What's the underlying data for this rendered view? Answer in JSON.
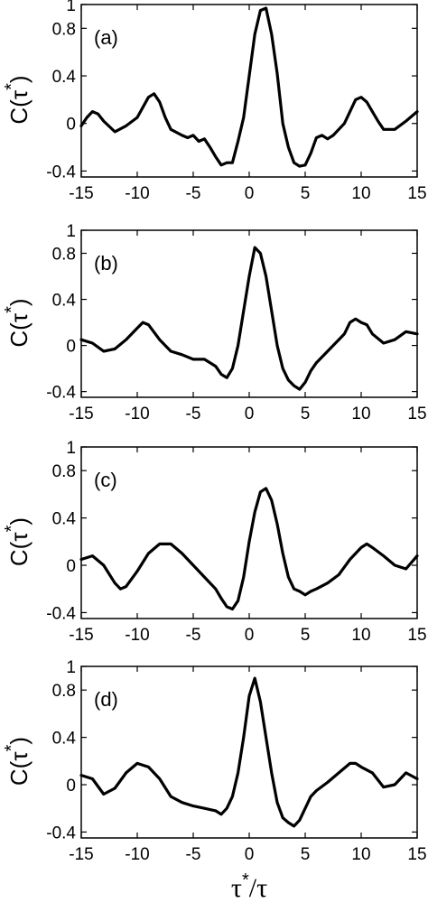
{
  "chart_data": [
    {
      "type": "line",
      "panel_label": "(a)",
      "ylabel_base": "C(τ",
      "ylabel_sup": "*",
      "ylabel_close": ")",
      "xlim": [
        -15,
        15
      ],
      "ylim": [
        -0.45,
        1.0
      ],
      "xticks": [
        "-15",
        "-10",
        "-5",
        "0",
        "5",
        "10",
        "15"
      ],
      "yticks": [
        "-0.4",
        "0",
        "0.4",
        "0.8",
        "1"
      ],
      "series": [
        {
          "x": [
            -15,
            -14.5,
            -14,
            -13.5,
            -13,
            -12,
            -11,
            -10,
            -9,
            -8.5,
            -8,
            -7.5,
            -7,
            -6,
            -5.5,
            -5,
            -4.5,
            -4,
            -3.5,
            -3,
            -2.5,
            -2,
            -1.5,
            -1,
            -0.5,
            0,
            0.5,
            1,
            1.5,
            2,
            2.5,
            3,
            3.5,
            4,
            4.5,
            5,
            5.5,
            6,
            6.5,
            7,
            7.5,
            8,
            8.5,
            9,
            9.5,
            10,
            10.5,
            11,
            11.5,
            12,
            13,
            14,
            15
          ],
          "values": [
            -0.02,
            0.05,
            0.1,
            0.08,
            0.02,
            -0.07,
            -0.02,
            0.05,
            0.22,
            0.25,
            0.18,
            0.05,
            -0.05,
            -0.1,
            -0.12,
            -0.1,
            -0.15,
            -0.13,
            -0.2,
            -0.28,
            -0.35,
            -0.33,
            -0.33,
            -0.15,
            0.05,
            0.4,
            0.75,
            0.95,
            0.97,
            0.75,
            0.42,
            0.0,
            -0.2,
            -0.33,
            -0.36,
            -0.35,
            -0.25,
            -0.12,
            -0.1,
            -0.13,
            -0.1,
            -0.05,
            0.0,
            0.1,
            0.2,
            0.22,
            0.18,
            0.1,
            0.02,
            -0.05,
            -0.05,
            0.02,
            0.1
          ]
        }
      ]
    },
    {
      "type": "line",
      "panel_label": "(b)",
      "ylabel_base": "C(τ",
      "ylabel_sup": "*",
      "ylabel_close": ")",
      "xlim": [
        -15,
        15
      ],
      "ylim": [
        -0.45,
        1.0
      ],
      "xticks": [
        "-15",
        "-10",
        "-5",
        "0",
        "5",
        "10",
        "15"
      ],
      "yticks": [
        "-0.4",
        "0",
        "0.4",
        "0.8",
        "1"
      ],
      "series": [
        {
          "x": [
            -15,
            -14,
            -13,
            -12,
            -11,
            -10,
            -9.5,
            -9,
            -8,
            -7,
            -6,
            -5,
            -4,
            -3,
            -2.5,
            -2,
            -1.5,
            -1,
            -0.5,
            0,
            0.5,
            1,
            1.5,
            2,
            2.5,
            3,
            3.5,
            4,
            4.5,
            5,
            5.5,
            6,
            7,
            8,
            8.5,
            9,
            9.5,
            10,
            10.5,
            11,
            12,
            13,
            14,
            15
          ],
          "values": [
            0.05,
            0.02,
            -0.05,
            -0.03,
            0.05,
            0.15,
            0.2,
            0.18,
            0.05,
            -0.05,
            -0.08,
            -0.12,
            -0.12,
            -0.18,
            -0.25,
            -0.28,
            -0.2,
            0.0,
            0.3,
            0.6,
            0.85,
            0.8,
            0.6,
            0.3,
            0.0,
            -0.2,
            -0.3,
            -0.35,
            -0.38,
            -0.32,
            -0.22,
            -0.15,
            -0.05,
            0.05,
            0.1,
            0.2,
            0.23,
            0.2,
            0.18,
            0.1,
            0.02,
            0.05,
            0.12,
            0.1
          ]
        }
      ]
    },
    {
      "type": "line",
      "panel_label": "(c)",
      "ylabel_base": "C(τ",
      "ylabel_sup": "*",
      "ylabel_close": ")",
      "xlim": [
        -15,
        15
      ],
      "ylim": [
        -0.45,
        1.0
      ],
      "xticks": [
        "-15",
        "-10",
        "-5",
        "0",
        "5",
        "10",
        "15"
      ],
      "yticks": [
        "-0.4",
        "0",
        "0.4",
        "0.8",
        "1"
      ],
      "series": [
        {
          "x": [
            -15,
            -14,
            -13,
            -12,
            -11.5,
            -11,
            -10,
            -9,
            -8,
            -7,
            -6,
            -5,
            -4,
            -3,
            -2.5,
            -2,
            -1.5,
            -1,
            -0.5,
            0,
            0.5,
            1,
            1.5,
            2,
            2.5,
            3,
            3.5,
            4,
            4.5,
            5,
            5.5,
            6,
            7,
            8,
            9,
            10,
            10.5,
            11,
            12,
            13,
            14,
            15
          ],
          "values": [
            0.05,
            0.08,
            0.0,
            -0.15,
            -0.2,
            -0.18,
            -0.05,
            0.1,
            0.18,
            0.18,
            0.1,
            0.0,
            -0.1,
            -0.2,
            -0.28,
            -0.35,
            -0.37,
            -0.3,
            -0.1,
            0.2,
            0.45,
            0.62,
            0.65,
            0.55,
            0.35,
            0.1,
            -0.1,
            -0.2,
            -0.22,
            -0.25,
            -0.22,
            -0.2,
            -0.15,
            -0.08,
            0.05,
            0.15,
            0.18,
            0.15,
            0.08,
            0.0,
            -0.03,
            0.08
          ]
        }
      ]
    },
    {
      "type": "line",
      "panel_label": "(d)",
      "ylabel_base": "C(τ",
      "ylabel_sup": "*",
      "ylabel_close": ")",
      "xlim": [
        -15,
        15
      ],
      "ylim": [
        -0.45,
        1.0
      ],
      "xticks": [
        "-15",
        "-10",
        "-5",
        "0",
        "5",
        "10",
        "15"
      ],
      "yticks": [
        "-0.4",
        "0",
        "0.4",
        "0.8",
        "1"
      ],
      "xlabel_base": "τ",
      "xlabel_sup": "*",
      "xlabel_rest": "/τ",
      "series": [
        {
          "x": [
            -15,
            -14,
            -13,
            -12,
            -11,
            -10,
            -9,
            -8,
            -7,
            -6,
            -5,
            -4,
            -3,
            -2.5,
            -2,
            -1.5,
            -1,
            -0.5,
            0,
            0.5,
            1,
            1.5,
            2,
            2.5,
            3,
            3.5,
            4,
            4.5,
            5,
            5.5,
            6,
            7,
            8,
            9,
            9.5,
            10,
            11,
            12,
            13,
            14,
            15
          ],
          "values": [
            0.08,
            0.05,
            -0.08,
            -0.03,
            0.1,
            0.18,
            0.15,
            0.05,
            -0.1,
            -0.15,
            -0.18,
            -0.2,
            -0.22,
            -0.25,
            -0.2,
            -0.1,
            0.1,
            0.4,
            0.75,
            0.9,
            0.7,
            0.4,
            0.1,
            -0.15,
            -0.28,
            -0.32,
            -0.35,
            -0.3,
            -0.2,
            -0.1,
            -0.05,
            0.02,
            0.1,
            0.18,
            0.18,
            0.15,
            0.1,
            -0.02,
            0.0,
            0.1,
            0.05
          ]
        }
      ]
    }
  ]
}
